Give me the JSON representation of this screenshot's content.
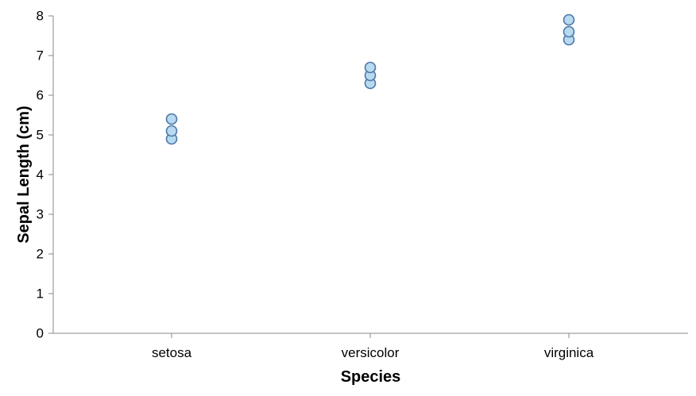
{
  "chart_data": {
    "type": "scatter",
    "title": "",
    "xlabel": "Species",
    "ylabel": "Sepal Length (cm)",
    "categories": [
      "setosa",
      "versicolor",
      "virginica"
    ],
    "ylim": [
      0,
      8
    ],
    "y_ticks": [
      "0",
      "1",
      "2",
      "3",
      "4",
      "5",
      "6",
      "7",
      "8"
    ],
    "grid": false,
    "legend": "none",
    "series": [
      {
        "points": [
          {
            "x": "setosa",
            "y": 4.9
          },
          {
            "x": "setosa",
            "y": 5.1
          },
          {
            "x": "setosa",
            "y": 5.4
          },
          {
            "x": "versicolor",
            "y": 6.3
          },
          {
            "x": "versicolor",
            "y": 6.5
          },
          {
            "x": "versicolor",
            "y": 6.7
          },
          {
            "x": "virginica",
            "y": 7.4
          },
          {
            "x": "virginica",
            "y": 7.6
          },
          {
            "x": "virginica",
            "y": 7.9
          }
        ]
      }
    ],
    "colors": {
      "point_fill": "#b8daf0",
      "point_stroke": "#4c78a8",
      "axis": "#888888",
      "text": "#000000"
    }
  }
}
